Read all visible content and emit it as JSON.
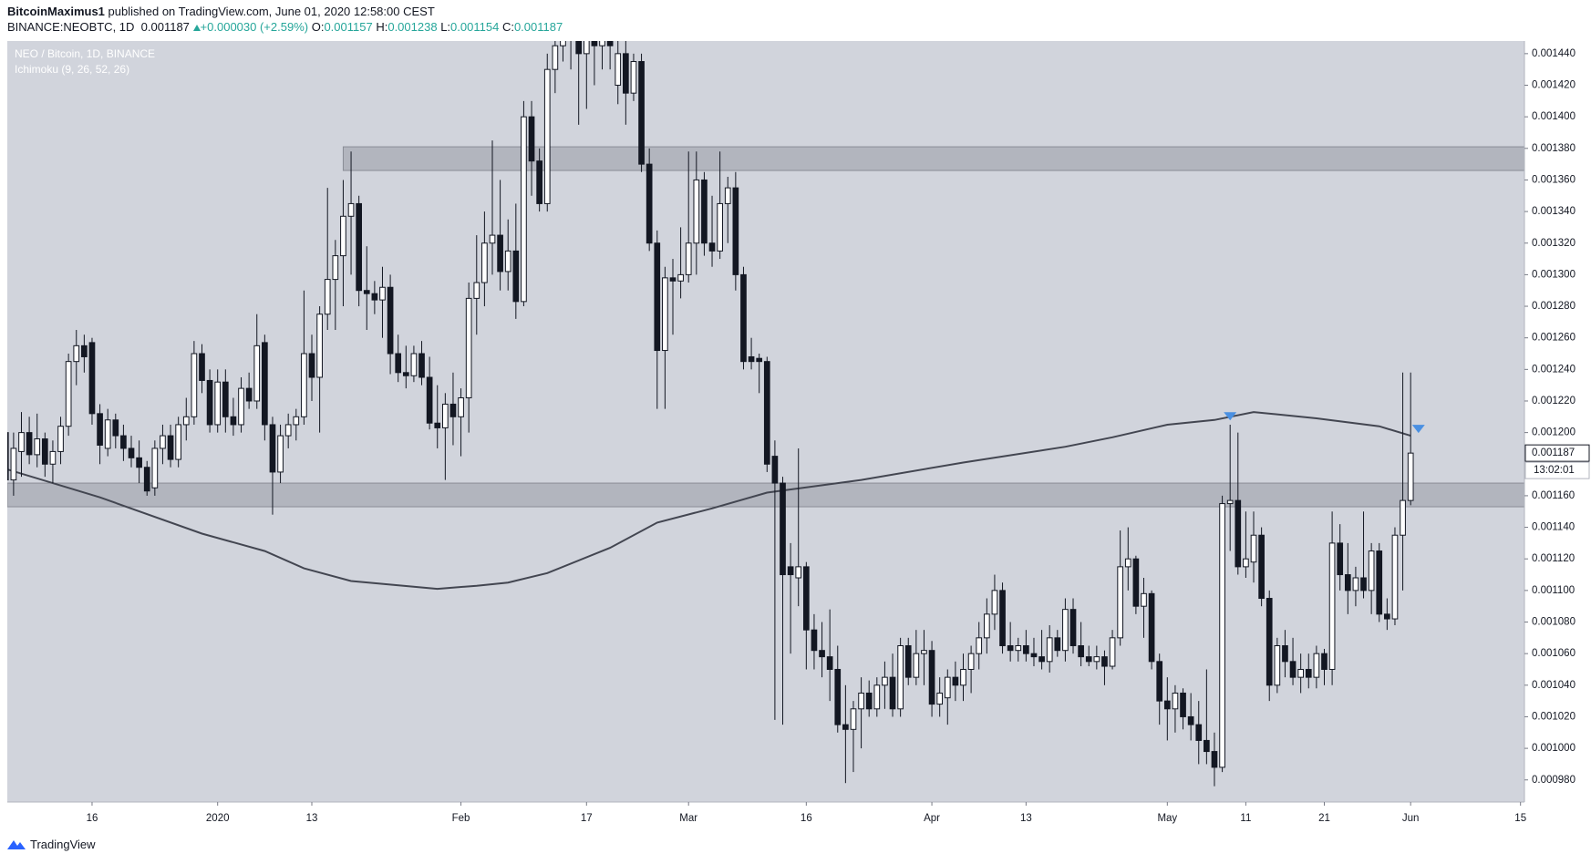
{
  "header": {
    "author": "BitcoinMaximus1",
    "published": "published on TradingView.com, June 01, 2020 12:58:00 CEST",
    "symbol": "BINANCE:NEOBTC, 1D",
    "change": "+0.000030 (+2.59%)",
    "ohlc_labels": [
      "O:",
      "H:",
      "L:",
      "C:"
    ]
  },
  "footer": {
    "brand": "TradingView"
  },
  "chart_data": {
    "type": "candlestick",
    "legend": [
      "NEO / Bitcoin, 1D, BINANCE",
      "Ichimoku (9, 26, 52, 26)"
    ],
    "countdown": "13:02:01",
    "up_color": "#ffffff",
    "down_color": "#131722",
    "wick_color": "#131722",
    "line_color": "#434651",
    "marker_color": "#4a90e2",
    "zone_color": "#b2b5be",
    "xlim": [
      0.2,
      193.5
    ],
    "ylim": [
      0.000966,
      0.001448
    ],
    "xticks": [
      {
        "value": 11,
        "label": "16"
      },
      {
        "value": 27,
        "label": "2020"
      },
      {
        "value": 39,
        "label": "13"
      },
      {
        "value": 58,
        "label": "Feb"
      },
      {
        "value": 74,
        "label": "17"
      },
      {
        "value": 87,
        "label": "Mar"
      },
      {
        "value": 102,
        "label": "16"
      },
      {
        "value": 118,
        "label": "Apr"
      },
      {
        "value": 130,
        "label": "13"
      },
      {
        "value": 148,
        "label": "May"
      },
      {
        "value": 158,
        "label": "11"
      },
      {
        "value": 168,
        "label": "21"
      },
      {
        "value": 179,
        "label": "Jun"
      },
      {
        "value": 193,
        "label": "15"
      }
    ],
    "yticks": [
      {
        "value": 0.00098,
        "label": "0.000980"
      },
      {
        "value": 0.001,
        "label": "0.001000"
      },
      {
        "value": 0.00102,
        "label": "0.001020"
      },
      {
        "value": 0.00104,
        "label": "0.001040"
      },
      {
        "value": 0.00106,
        "label": "0.001060"
      },
      {
        "value": 0.00108,
        "label": "0.001080"
      },
      {
        "value": 0.0011,
        "label": "0.001100"
      },
      {
        "value": 0.00112,
        "label": "0.001120"
      },
      {
        "value": 0.00114,
        "label": "0.001140"
      },
      {
        "value": 0.00116,
        "label": "0.001160"
      },
      {
        "value": 0.0012,
        "label": "0.001200"
      },
      {
        "value": 0.00122,
        "label": "0.001220"
      },
      {
        "value": 0.00124,
        "label": "0.001240"
      },
      {
        "value": 0.00126,
        "label": "0.001260"
      },
      {
        "value": 0.00128,
        "label": "0.001280"
      },
      {
        "value": 0.0013,
        "label": "0.001300"
      },
      {
        "value": 0.00132,
        "label": "0.001320"
      },
      {
        "value": 0.00134,
        "label": "0.001340"
      },
      {
        "value": 0.00136,
        "label": "0.001360"
      },
      {
        "value": 0.00138,
        "label": "0.001380"
      },
      {
        "value": 0.0014,
        "label": "0.001400"
      },
      {
        "value": 0.00142,
        "label": "0.001420"
      },
      {
        "value": 0.00144,
        "label": "0.001440"
      }
    ],
    "zones": [
      {
        "from": 0.001153,
        "to": 0.001168
      },
      {
        "from": 0.001366,
        "to": 0.001381,
        "start": 43
      }
    ],
    "ma": {
      "x": [
        0,
        12,
        25,
        33,
        38,
        44,
        55,
        60,
        64,
        69,
        77,
        83,
        90,
        97,
        109,
        122,
        135,
        141,
        148,
        154,
        159,
        167,
        175,
        179
      ],
      "values": [
        0.001177,
        0.001159,
        0.001136,
        0.001125,
        0.001114,
        0.001106,
        0.001101,
        0.001103,
        0.001105,
        0.001111,
        0.001127,
        0.001143,
        0.001152,
        0.001162,
        0.00117,
        0.001181,
        0.001191,
        0.001197,
        0.001205,
        0.001208,
        0.001213,
        0.001209,
        0.001204,
        0.001198
      ]
    },
    "markers": {
      "x": [
        156,
        180
      ],
      "values": [
        0.00121,
        0.001202
      ]
    },
    "candles": [
      [
        0.0012,
        0.001207,
        0.001163,
        0.00117
      ],
      [
        0.00117,
        0.0012,
        0.00116,
        0.00119
      ],
      [
        0.001188,
        0.001213,
        0.001172,
        0.0012
      ],
      [
        0.0012,
        0.00121,
        0.00118,
        0.001186
      ],
      [
        0.001186,
        0.001212,
        0.001178,
        0.001196
      ],
      [
        0.001196,
        0.0012,
        0.001172,
        0.00118
      ],
      [
        0.00118,
        0.001195,
        0.001168,
        0.001188
      ],
      [
        0.001188,
        0.00121,
        0.00118,
        0.001204
      ],
      [
        0.001204,
        0.00125,
        0.001198,
        0.001245
      ],
      [
        0.001245,
        0.001265,
        0.00123,
        0.001255
      ],
      [
        0.001255,
        0.001262,
        0.001238,
        0.001248
      ],
      [
        0.001257,
        0.00126,
        0.001205,
        0.001212
      ],
      [
        0.001212,
        0.001218,
        0.00118,
        0.001192
      ],
      [
        0.00119,
        0.001215,
        0.001185,
        0.001208
      ],
      [
        0.001208,
        0.001212,
        0.00119,
        0.001198
      ],
      [
        0.001198,
        0.001205,
        0.001182,
        0.00119
      ],
      [
        0.00119,
        0.001198,
        0.001178,
        0.001184
      ],
      [
        0.001184,
        0.001195,
        0.001168,
        0.001178
      ],
      [
        0.001178,
        0.001182,
        0.00116,
        0.001163
      ],
      [
        0.001165,
        0.001195,
        0.00116,
        0.00119
      ],
      [
        0.00119,
        0.001205,
        0.00118,
        0.001198
      ],
      [
        0.001198,
        0.001205,
        0.001178,
        0.001183
      ],
      [
        0.001183,
        0.00121,
        0.001178,
        0.001205
      ],
      [
        0.001205,
        0.001222,
        0.001195,
        0.00121
      ],
      [
        0.00121,
        0.001258,
        0.001205,
        0.00125
      ],
      [
        0.00125,
        0.001256,
        0.001225,
        0.001233
      ],
      [
        0.001233,
        0.00124,
        0.0012,
        0.001205
      ],
      [
        0.001205,
        0.00124,
        0.0012,
        0.001232
      ],
      [
        0.001232,
        0.00124,
        0.0012,
        0.00121
      ],
      [
        0.00121,
        0.001222,
        0.001198,
        0.001205
      ],
      [
        0.001205,
        0.001235,
        0.0012,
        0.001228
      ],
      [
        0.001228,
        0.001238,
        0.001215,
        0.00122
      ],
      [
        0.00122,
        0.001275,
        0.001215,
        0.001255
      ],
      [
        0.001257,
        0.001262,
        0.001195,
        0.001205
      ],
      [
        0.001205,
        0.00121,
        0.001148,
        0.001175
      ],
      [
        0.001175,
        0.001205,
        0.001168,
        0.001198
      ],
      [
        0.001198,
        0.001212,
        0.00119,
        0.001205
      ],
      [
        0.001205,
        0.001215,
        0.001195,
        0.00121
      ],
      [
        0.00121,
        0.00129,
        0.001205,
        0.00125
      ],
      [
        0.00125,
        0.001262,
        0.00122,
        0.001235
      ],
      [
        0.001235,
        0.00128,
        0.0012,
        0.001275
      ],
      [
        0.001275,
        0.001355,
        0.001265,
        0.001297
      ],
      [
        0.001297,
        0.001322,
        0.001265,
        0.001312
      ],
      [
        0.001312,
        0.00136,
        0.00128,
        0.001337
      ],
      [
        0.001337,
        0.001378,
        0.0013,
        0.001345
      ],
      [
        0.001345,
        0.00135,
        0.00128,
        0.00129
      ],
      [
        0.00129,
        0.001318,
        0.001265,
        0.001288
      ],
      [
        0.001288,
        0.001296,
        0.001275,
        0.001284
      ],
      [
        0.001284,
        0.001305,
        0.00126,
        0.001292
      ],
      [
        0.001292,
        0.0013,
        0.001237,
        0.00125
      ],
      [
        0.00125,
        0.001262,
        0.001232,
        0.001238
      ],
      [
        0.001238,
        0.001255,
        0.001228,
        0.001236
      ],
      [
        0.001236,
        0.001255,
        0.001232,
        0.00125
      ],
      [
        0.00125,
        0.001258,
        0.00123,
        0.001235
      ],
      [
        0.001235,
        0.001248,
        0.001202,
        0.001206
      ],
      [
        0.001206,
        0.00123,
        0.00119,
        0.001203
      ],
      [
        0.001203,
        0.001225,
        0.00117,
        0.001218
      ],
      [
        0.001218,
        0.001238,
        0.001192,
        0.00121
      ],
      [
        0.00121,
        0.001228,
        0.001185,
        0.001222
      ],
      [
        0.001222,
        0.001295,
        0.0012,
        0.001285
      ],
      [
        0.001285,
        0.001325,
        0.001262,
        0.001295
      ],
      [
        0.001295,
        0.00134,
        0.00128,
        0.00132
      ],
      [
        0.00132,
        0.001385,
        0.0013,
        0.001325
      ],
      [
        0.001325,
        0.00136,
        0.00129,
        0.001302
      ],
      [
        0.001302,
        0.001335,
        0.00129,
        0.001315
      ],
      [
        0.001315,
        0.001345,
        0.001272,
        0.001283
      ],
      [
        0.001283,
        0.00141,
        0.00128,
        0.0014
      ],
      [
        0.0014,
        0.00141,
        0.00135,
        0.001372
      ],
      [
        0.001372,
        0.00138,
        0.00134,
        0.001345
      ],
      [
        0.001345,
        0.00144,
        0.00134,
        0.00143
      ],
      [
        0.00143,
        0.00145,
        0.001415,
        0.001445
      ],
      [
        0.001445,
        0.00147,
        0.001435,
        0.00146
      ],
      [
        0.00146,
        0.00148,
        0.00143,
        0.00145
      ],
      [
        0.00145,
        0.00147,
        0.001395,
        0.00144
      ],
      [
        0.00144,
        0.00146,
        0.001405,
        0.00145
      ],
      [
        0.00145,
        0.001465,
        0.00142,
        0.001445
      ],
      [
        0.001445,
        0.00147,
        0.00143,
        0.001455
      ],
      [
        0.001455,
        0.00147,
        0.00143,
        0.001445
      ],
      [
        0.00142,
        0.001455,
        0.001408,
        0.00144
      ],
      [
        0.00144,
        0.001448,
        0.001395,
        0.001415
      ],
      [
        0.001415,
        0.00144,
        0.00141,
        0.001435
      ],
      [
        0.001435,
        0.00144,
        0.001365,
        0.00137
      ],
      [
        0.00137,
        0.00138,
        0.001315,
        0.00132
      ],
      [
        0.00132,
        0.001328,
        0.001215,
        0.001252
      ],
      [
        0.001252,
        0.001305,
        0.001215,
        0.001298
      ],
      [
        0.001298,
        0.00131,
        0.001262,
        0.001296
      ],
      [
        0.001296,
        0.00133,
        0.001285,
        0.0013
      ],
      [
        0.0013,
        0.001378,
        0.001295,
        0.00132
      ],
      [
        0.00132,
        0.001378,
        0.0013,
        0.00136
      ],
      [
        0.00136,
        0.001365,
        0.001312,
        0.00132
      ],
      [
        0.00132,
        0.00135,
        0.001305,
        0.001315
      ],
      [
        0.001315,
        0.001378,
        0.00131,
        0.001345
      ],
      [
        0.001345,
        0.001362,
        0.00132,
        0.001355
      ],
      [
        0.001355,
        0.001365,
        0.00129,
        0.0013
      ],
      [
        0.0013,
        0.001305,
        0.00124,
        0.001245
      ],
      [
        0.001248,
        0.00126,
        0.00124,
        0.001245
      ],
      [
        0.001247,
        0.00125,
        0.001225,
        0.001245
      ],
      [
        0.001245,
        0.001248,
        0.001175,
        0.00118
      ],
      [
        0.001185,
        0.001195,
        0.001018,
        0.001168
      ],
      [
        0.001168,
        0.001172,
        0.001015,
        0.00111
      ],
      [
        0.001115,
        0.00113,
        0.00106,
        0.00111
      ],
      [
        0.001108,
        0.00119,
        0.00109,
        0.001115
      ],
      [
        0.001115,
        0.001118,
        0.00105,
        0.001075
      ],
      [
        0.001075,
        0.001085,
        0.00105,
        0.001062
      ],
      [
        0.001062,
        0.00108,
        0.001045,
        0.001058
      ],
      [
        0.001058,
        0.001088,
        0.00103,
        0.00105
      ],
      [
        0.00105,
        0.001065,
        0.00101,
        0.001015
      ],
      [
        0.001015,
        0.00104,
        0.000978,
        0.001012
      ],
      [
        0.001012,
        0.00103,
        0.000985,
        0.001025
      ],
      [
        0.001025,
        0.001045,
        0.001,
        0.001035
      ],
      [
        0.001035,
        0.001043,
        0.00102,
        0.001025
      ],
      [
        0.001025,
        0.001045,
        0.00102,
        0.00104
      ],
      [
        0.00104,
        0.001055,
        0.001025,
        0.001045
      ],
      [
        0.001045,
        0.00106,
        0.00102,
        0.001025
      ],
      [
        0.001025,
        0.00107,
        0.00102,
        0.001065
      ],
      [
        0.001065,
        0.00107,
        0.00104,
        0.001045
      ],
      [
        0.001045,
        0.001075,
        0.00104,
        0.00106
      ],
      [
        0.00106,
        0.001075,
        0.00104,
        0.001062
      ],
      [
        0.001062,
        0.001068,
        0.00102,
        0.001028
      ],
      [
        0.001028,
        0.001045,
        0.00102,
        0.001035
      ],
      [
        0.001032,
        0.00105,
        0.001015,
        0.001045
      ],
      [
        0.001045,
        0.001055,
        0.00103,
        0.00104
      ],
      [
        0.00104,
        0.00106,
        0.00103,
        0.00105
      ],
      [
        0.00105,
        0.001065,
        0.001035,
        0.00106
      ],
      [
        0.00106,
        0.00108,
        0.00105,
        0.00107
      ],
      [
        0.00107,
        0.001095,
        0.00106,
        0.001085
      ],
      [
        0.001085,
        0.00111,
        0.001075,
        0.0011
      ],
      [
        0.0011,
        0.001105,
        0.00106,
        0.001065
      ],
      [
        0.001065,
        0.00108,
        0.001055,
        0.001062
      ],
      [
        0.001062,
        0.00107,
        0.001055,
        0.001065
      ],
      [
        0.001065,
        0.001075,
        0.001055,
        0.00106
      ],
      [
        0.00106,
        0.00107,
        0.001052,
        0.001058
      ],
      [
        0.001058,
        0.001075,
        0.00105,
        0.001055
      ],
      [
        0.001055,
        0.001078,
        0.001048,
        0.00107
      ],
      [
        0.00107,
        0.001075,
        0.001058,
        0.001062
      ],
      [
        0.001062,
        0.001095,
        0.001055,
        0.001088
      ],
      [
        0.001088,
        0.001095,
        0.00106,
        0.001065
      ],
      [
        0.001065,
        0.00108,
        0.001052,
        0.001058
      ],
      [
        0.001058,
        0.001065,
        0.001052,
        0.001055
      ],
      [
        0.001055,
        0.001065,
        0.00105,
        0.001058
      ],
      [
        0.001058,
        0.001062,
        0.00104,
        0.001052
      ],
      [
        0.001052,
        0.001075,
        0.00105,
        0.00107
      ],
      [
        0.00107,
        0.001138,
        0.001065,
        0.001115
      ],
      [
        0.001115,
        0.00114,
        0.0011,
        0.00112
      ],
      [
        0.00112,
        0.001122,
        0.001085,
        0.00109
      ],
      [
        0.00109,
        0.001108,
        0.00107,
        0.001098
      ],
      [
        0.001098,
        0.0011,
        0.00105,
        0.001055
      ],
      [
        0.001055,
        0.00106,
        0.001015,
        0.00103
      ],
      [
        0.00103,
        0.001045,
        0.001005,
        0.001025
      ],
      [
        0.001025,
        0.00104,
        0.00101,
        0.001035
      ],
      [
        0.001035,
        0.001038,
        0.001012,
        0.00102
      ],
      [
        0.00102,
        0.001035,
        0.001005,
        0.001015
      ],
      [
        0.001015,
        0.00103,
        0.00099,
        0.001005
      ],
      [
        0.001005,
        0.00105,
        0.00099,
        0.000998
      ],
      [
        0.000998,
        0.00101,
        0.000976,
        0.000988
      ],
      [
        0.000988,
        0.00116,
        0.000985,
        0.001155
      ],
      [
        0.001155,
        0.001205,
        0.001125,
        0.001157
      ],
      [
        0.001157,
        0.0012,
        0.00111,
        0.001115
      ],
      [
        0.001115,
        0.00115,
        0.001108,
        0.00112
      ],
      [
        0.001118,
        0.00115,
        0.001105,
        0.001135
      ],
      [
        0.001135,
        0.00114,
        0.00109,
        0.001095
      ],
      [
        0.001095,
        0.0011,
        0.00103,
        0.00104
      ],
      [
        0.00104,
        0.00107,
        0.001035,
        0.001065
      ],
      [
        0.001065,
        0.001075,
        0.001045,
        0.001055
      ],
      [
        0.001055,
        0.00107,
        0.00104,
        0.001045
      ],
      [
        0.001045,
        0.00106,
        0.001035,
        0.00105
      ],
      [
        0.00105,
        0.00106,
        0.001038,
        0.001045
      ],
      [
        0.001045,
        0.001065,
        0.001038,
        0.00106
      ],
      [
        0.00106,
        0.001063,
        0.00104,
        0.00105
      ],
      [
        0.00105,
        0.00115,
        0.00104,
        0.00113
      ],
      [
        0.00113,
        0.001142,
        0.0011,
        0.00111
      ],
      [
        0.00111,
        0.00113,
        0.001085,
        0.0011
      ],
      [
        0.0011,
        0.001115,
        0.00109,
        0.001108
      ],
      [
        0.001108,
        0.00115,
        0.001095,
        0.0011
      ],
      [
        0.0011,
        0.00113,
        0.001085,
        0.001125
      ],
      [
        0.001125,
        0.00113,
        0.00108,
        0.001085
      ],
      [
        0.001085,
        0.001095,
        0.001075,
        0.001082
      ],
      [
        0.001082,
        0.00114,
        0.001078,
        0.001135
      ],
      [
        0.001135,
        0.001238,
        0.0011,
        0.001157
      ],
      [
        0.001157,
        0.001238,
        0.001154,
        0.001187
      ]
    ]
  }
}
